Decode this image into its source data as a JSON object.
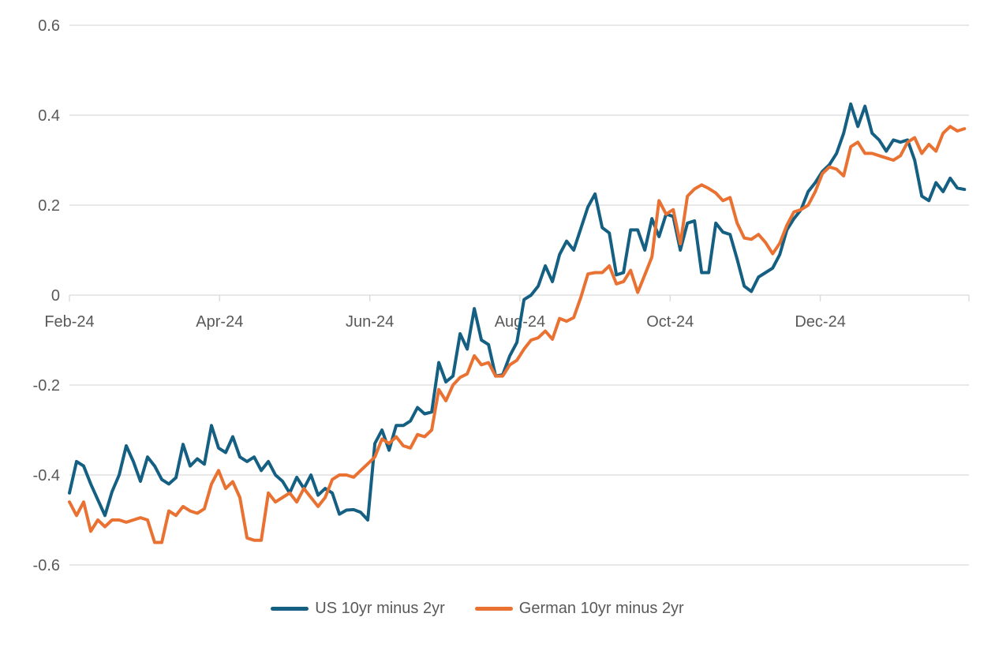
{
  "chart_data": {
    "type": "line",
    "title": "",
    "xlabel": "",
    "ylabel": "",
    "grid": "horizontal",
    "legend_position": "bottom",
    "x_axis": {
      "tick_labels": [
        "Feb-24",
        "Apr-24",
        "Jun-24",
        "Aug-24",
        "Oct-24",
        "Dec-24"
      ],
      "tick_positions_months": [
        0,
        2,
        4,
        6,
        8,
        10
      ],
      "range_months": [
        0,
        11.98
      ]
    },
    "y_axis": {
      "tick_labels": [
        "0.6",
        "0.4",
        "0.2",
        "0",
        "-0.2",
        "-0.4",
        "-0.6"
      ],
      "tick_values": [
        0.6,
        0.4,
        0.2,
        0,
        -0.2,
        -0.4,
        -0.6
      ],
      "range": [
        -0.6,
        0.6
      ]
    },
    "series": [
      {
        "name": "US 10yr minus 2yr",
        "color": "#156082",
        "x_start_months": 0,
        "x_step_months": 0.0946,
        "values": [
          -0.44,
          -0.37,
          -0.38,
          -0.42,
          -0.455,
          -0.49,
          -0.437,
          -0.4,
          -0.335,
          -0.37,
          -0.414,
          -0.36,
          -0.38,
          -0.41,
          -0.42,
          -0.406,
          -0.332,
          -0.38,
          -0.364,
          -0.376,
          -0.29,
          -0.34,
          -0.35,
          -0.315,
          -0.36,
          -0.37,
          -0.36,
          -0.39,
          -0.37,
          -0.4,
          -0.414,
          -0.44,
          -0.405,
          -0.43,
          -0.4,
          -0.445,
          -0.43,
          -0.44,
          -0.487,
          -0.478,
          -0.477,
          -0.483,
          -0.5,
          -0.33,
          -0.3,
          -0.345,
          -0.29,
          -0.29,
          -0.28,
          -0.25,
          -0.264,
          -0.26,
          -0.15,
          -0.193,
          -0.18,
          -0.086,
          -0.12,
          -0.03,
          -0.1,
          -0.11,
          -0.18,
          -0.177,
          -0.135,
          -0.105,
          -0.01,
          0.0,
          0.02,
          0.065,
          0.03,
          0.09,
          0.12,
          0.1,
          0.148,
          0.196,
          0.225,
          0.15,
          0.138,
          0.045,
          0.05,
          0.145,
          0.145,
          0.1,
          0.17,
          0.13,
          0.18,
          0.175,
          0.1,
          0.16,
          0.165,
          0.05,
          0.05,
          0.16,
          0.14,
          0.135,
          0.08,
          0.02,
          0.008,
          0.04,
          0.05,
          0.06,
          0.09,
          0.145,
          0.17,
          0.19,
          0.23,
          0.25,
          0.275,
          0.29,
          0.315,
          0.36,
          0.425,
          0.375,
          0.42,
          0.36,
          0.345,
          0.32,
          0.345,
          0.34,
          0.345,
          0.3,
          0.22,
          0.21,
          0.25,
          0.23,
          0.26,
          0.238,
          0.235
        ]
      },
      {
        "name": "German 10yr minus 2yr",
        "color": "#E97132",
        "x_start_months": 0,
        "x_step_months": 0.0946,
        "values": [
          -0.46,
          -0.49,
          -0.46,
          -0.525,
          -0.5,
          -0.515,
          -0.5,
          -0.5,
          -0.505,
          -0.5,
          -0.495,
          -0.5,
          -0.55,
          -0.55,
          -0.48,
          -0.49,
          -0.47,
          -0.48,
          -0.485,
          -0.475,
          -0.42,
          -0.39,
          -0.43,
          -0.415,
          -0.45,
          -0.54,
          -0.545,
          -0.545,
          -0.44,
          -0.46,
          -0.45,
          -0.44,
          -0.46,
          -0.43,
          -0.45,
          -0.47,
          -0.45,
          -0.41,
          -0.4,
          -0.4,
          -0.405,
          -0.39,
          -0.375,
          -0.36,
          -0.32,
          -0.33,
          -0.315,
          -0.335,
          -0.34,
          -0.31,
          -0.315,
          -0.3,
          -0.21,
          -0.235,
          -0.2,
          -0.183,
          -0.175,
          -0.135,
          -0.155,
          -0.15,
          -0.18,
          -0.18,
          -0.155,
          -0.145,
          -0.12,
          -0.1,
          -0.095,
          -0.08,
          -0.098,
          -0.052,
          -0.058,
          -0.05,
          -0.005,
          0.047,
          0.05,
          0.05,
          0.065,
          0.025,
          0.03,
          0.055,
          0.006,
          0.045,
          0.085,
          0.21,
          0.18,
          0.19,
          0.114,
          0.22,
          0.236,
          0.245,
          0.237,
          0.227,
          0.21,
          0.217,
          0.16,
          0.127,
          0.124,
          0.135,
          0.117,
          0.092,
          0.115,
          0.155,
          0.185,
          0.19,
          0.2,
          0.23,
          0.27,
          0.285,
          0.28,
          0.265,
          0.33,
          0.34,
          0.315,
          0.315,
          0.31,
          0.305,
          0.3,
          0.31,
          0.34,
          0.35,
          0.315,
          0.335,
          0.32,
          0.36,
          0.375,
          0.365,
          0.37
        ]
      }
    ]
  },
  "legend": {
    "items": [
      {
        "label": "US 10yr minus 2yr",
        "color": "#156082"
      },
      {
        "label": "German 10yr minus 2yr",
        "color": "#E97132"
      }
    ]
  },
  "styles": {
    "background": "#FFFFFF",
    "gridline_color": "#D9D9D9",
    "axis_label_color": "#595959",
    "us_line_color": "#156082",
    "german_line_color": "#E97132"
  }
}
